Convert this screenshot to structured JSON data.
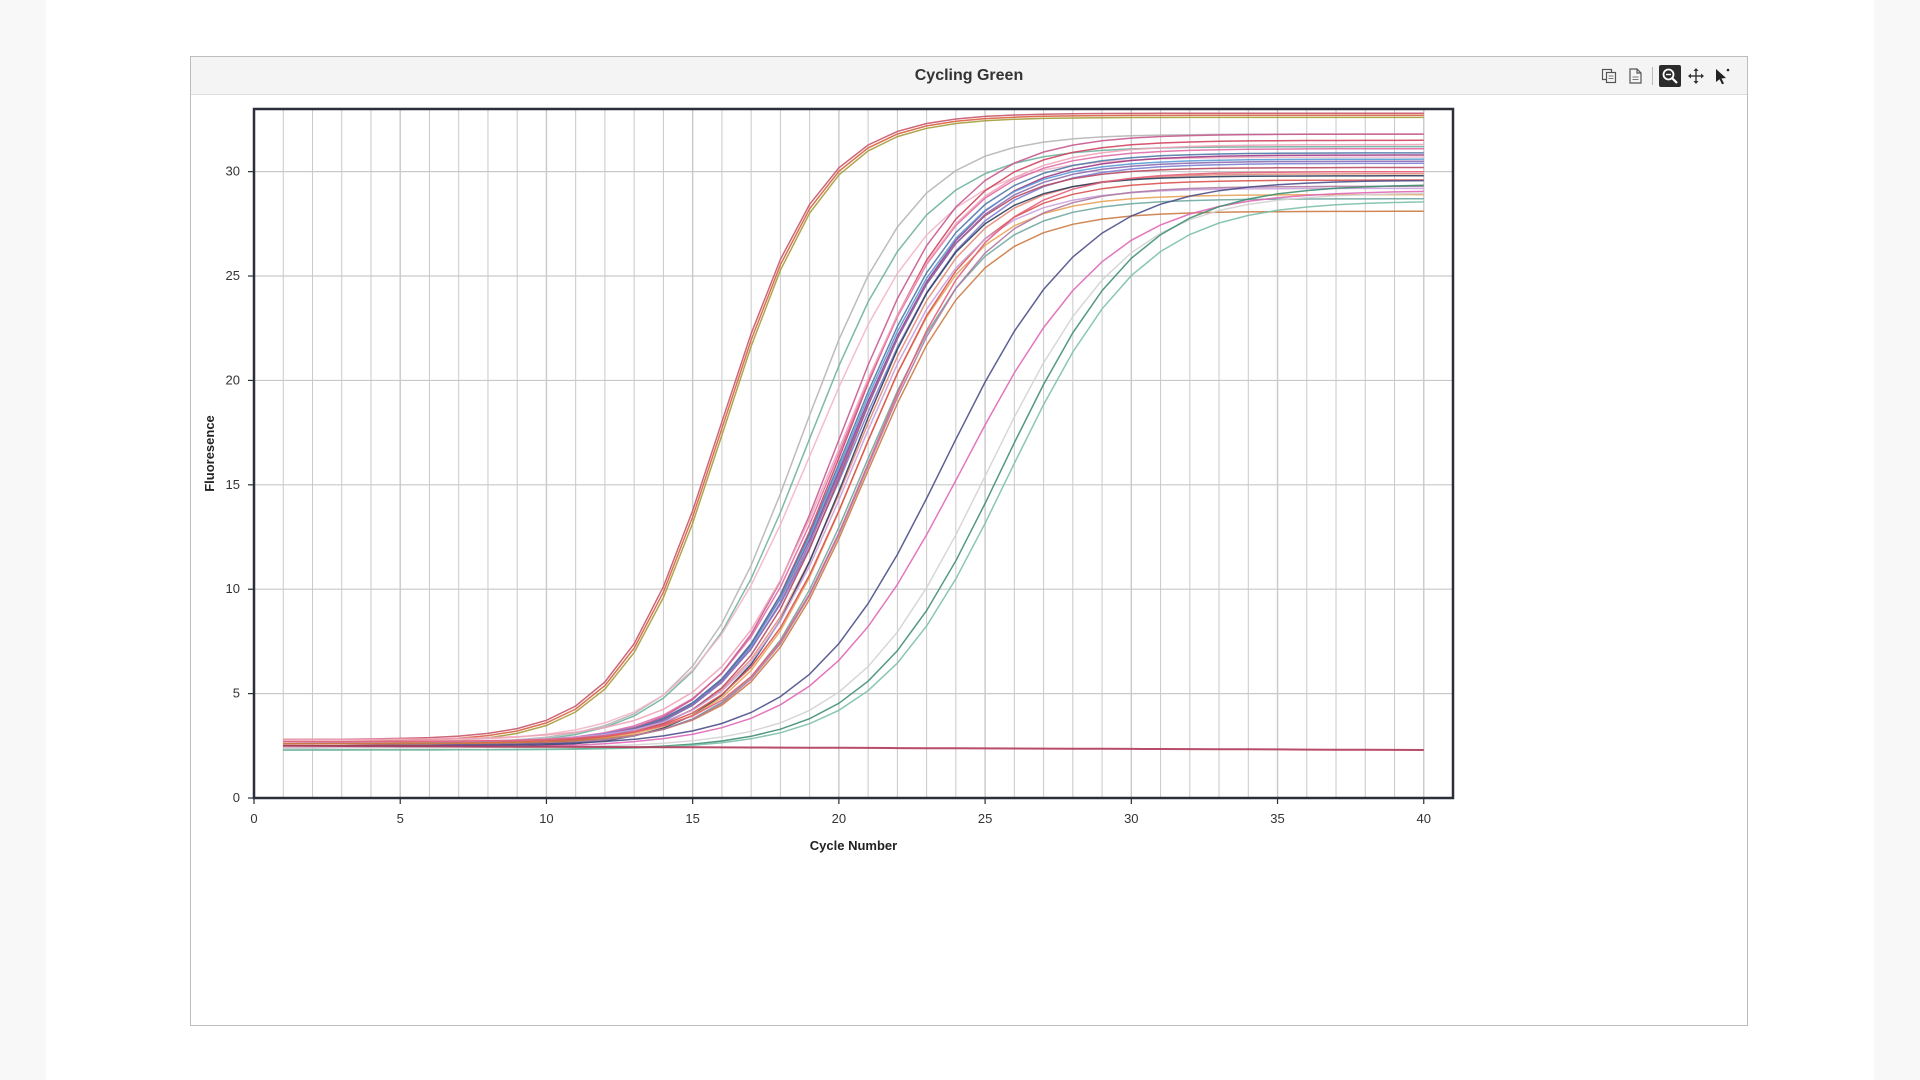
{
  "chart_title": "Cycling Green",
  "toolbar": {
    "icons": [
      "copy-icon",
      "export-icon",
      "zoom-icon",
      "pan-icon",
      "pointer-icon"
    ],
    "active": "zoom-icon"
  },
  "colors": {
    "grid": "#c9c9c9",
    "plot_border": "#2a2f3a",
    "palette": [
      "#d1425f",
      "#e06aa6",
      "#9b3a86",
      "#e48c7a",
      "#5a9bd5",
      "#7c7fd1",
      "#d9534f",
      "#f0a3b8",
      "#c85a8f",
      "#6fb1a0",
      "#e8a35a",
      "#8c6bb1",
      "#b84a62",
      "#f2b6c6",
      "#4e79a7",
      "#c9a0dc"
    ]
  },
  "chart_data": {
    "type": "line",
    "title": "Cycling Green",
    "xlabel": "Cycle Number",
    "ylabel": "Fluoresence",
    "xlim": [
      0,
      41
    ],
    "ylim": [
      0,
      33
    ],
    "xticks": [
      0,
      5,
      10,
      15,
      20,
      25,
      30,
      35,
      40
    ],
    "yticks": [
      0,
      5,
      10,
      15,
      20,
      25,
      30
    ],
    "grid": true,
    "x": [
      1,
      40
    ],
    "series": [
      {
        "group": "early",
        "color": "#d9603f",
        "baseline": 2.7,
        "plateau": 32.7,
        "midpoint": 16.0,
        "slope": 0.58
      },
      {
        "group": "early",
        "color": "#a59c3c",
        "baseline": 2.6,
        "plateau": 32.6,
        "midpoint": 16.05,
        "slope": 0.58
      },
      {
        "group": "early",
        "color": "#c8556a",
        "baseline": 2.8,
        "plateau": 32.8,
        "midpoint": 15.95,
        "slope": 0.58
      },
      {
        "group": "second",
        "color": "#b5b5b5",
        "baseline": 2.6,
        "plateau": 31.8,
        "midpoint": 18.7,
        "slope": 0.52
      },
      {
        "group": "second",
        "color": "#6fb1a0",
        "baseline": 2.5,
        "plateau": 31.2,
        "midpoint": 18.9,
        "slope": 0.5
      },
      {
        "group": "second",
        "color": "#f2b6c6",
        "baseline": 2.7,
        "plateau": 30.7,
        "midpoint": 19.1,
        "slope": 0.48
      },
      {
        "group": "main",
        "color": "#d1425f",
        "baseline": 2.5,
        "plateau": 31.5,
        "midpoint": 20.2,
        "slope": 0.5
      },
      {
        "group": "main",
        "color": "#e06aa6",
        "baseline": 2.6,
        "plateau": 31.1,
        "midpoint": 20.1,
        "slope": 0.49
      },
      {
        "group": "main",
        "color": "#9b3a86",
        "baseline": 2.5,
        "plateau": 30.8,
        "midpoint": 20.3,
        "slope": 0.48
      },
      {
        "group": "main",
        "color": "#5a9bd5",
        "baseline": 2.4,
        "plateau": 30.6,
        "midpoint": 20.2,
        "slope": 0.49
      },
      {
        "group": "main",
        "color": "#7c7fd1",
        "baseline": 2.6,
        "plateau": 30.4,
        "midpoint": 20.4,
        "slope": 0.48
      },
      {
        "group": "main",
        "color": "#c85a8f",
        "baseline": 2.5,
        "plateau": 31.8,
        "midpoint": 20.0,
        "slope": 0.5
      },
      {
        "group": "main",
        "color": "#e48c7a",
        "baseline": 2.6,
        "plateau": 29.9,
        "midpoint": 20.5,
        "slope": 0.5
      },
      {
        "group": "main",
        "color": "#b84a62",
        "baseline": 2.5,
        "plateau": 30.2,
        "midpoint": 20.3,
        "slope": 0.51
      },
      {
        "group": "main",
        "color": "#2f3e5c",
        "baseline": 2.4,
        "plateau": 29.8,
        "midpoint": 20.4,
        "slope": 0.52
      },
      {
        "group": "main",
        "color": "#4e79a7",
        "baseline": 2.5,
        "plateau": 30.9,
        "midpoint": 20.2,
        "slope": 0.49
      },
      {
        "group": "main",
        "color": "#e8a35a",
        "baseline": 2.6,
        "plateau": 28.9,
        "midpoint": 20.6,
        "slope": 0.52
      },
      {
        "group": "main",
        "color": "#8c6bb1",
        "baseline": 2.5,
        "plateau": 30.5,
        "midpoint": 20.3,
        "slope": 0.49
      },
      {
        "group": "main",
        "color": "#d9534f",
        "baseline": 2.6,
        "plateau": 29.6,
        "midpoint": 20.7,
        "slope": 0.5
      },
      {
        "group": "main",
        "color": "#f0a3b8",
        "baseline": 2.8,
        "plateau": 31.3,
        "midpoint": 20.1,
        "slope": 0.48
      },
      {
        "group": "main",
        "color": "#c9a0dc",
        "baseline": 2.7,
        "plateau": 29.2,
        "midpoint": 20.5,
        "slope": 0.51
      },
      {
        "group": "main",
        "color": "#6fa8a0",
        "baseline": 2.5,
        "plateau": 28.7,
        "midpoint": 20.8,
        "slope": 0.51
      },
      {
        "group": "main",
        "color": "#cc7a45",
        "baseline": 2.6,
        "plateau": 28.1,
        "midpoint": 20.9,
        "slope": 0.52
      },
      {
        "group": "main",
        "color": "#e35f7a",
        "baseline": 2.7,
        "plateau": 30.0,
        "midpoint": 21.1,
        "slope": 0.5
      },
      {
        "group": "main",
        "color": "#b07aa1",
        "baseline": 2.5,
        "plateau": 29.3,
        "midpoint": 21.0,
        "slope": 0.5
      },
      {
        "group": "late",
        "color": "#4d4f8a",
        "baseline": 2.5,
        "plateau": 29.6,
        "midpoint": 23.6,
        "slope": 0.42
      },
      {
        "group": "late",
        "color": "#e067b6",
        "baseline": 2.4,
        "plateau": 29.1,
        "midpoint": 24.2,
        "slope": 0.4
      },
      {
        "group": "latest",
        "color": "#d3d3d3",
        "baseline": 2.4,
        "plateau": 29.0,
        "midpoint": 25.1,
        "slope": 0.43
      },
      {
        "group": "latest",
        "color": "#3e8f6f",
        "baseline": 2.3,
        "plateau": 29.4,
        "midpoint": 25.6,
        "slope": 0.43
      },
      {
        "group": "latest",
        "color": "#7cc0aa",
        "baseline": 2.3,
        "plateau": 28.6,
        "midpoint": 25.8,
        "slope": 0.44
      },
      {
        "group": "flat",
        "color": "#b03a5b",
        "start_value": 2.5,
        "end_value": 2.3
      }
    ]
  }
}
